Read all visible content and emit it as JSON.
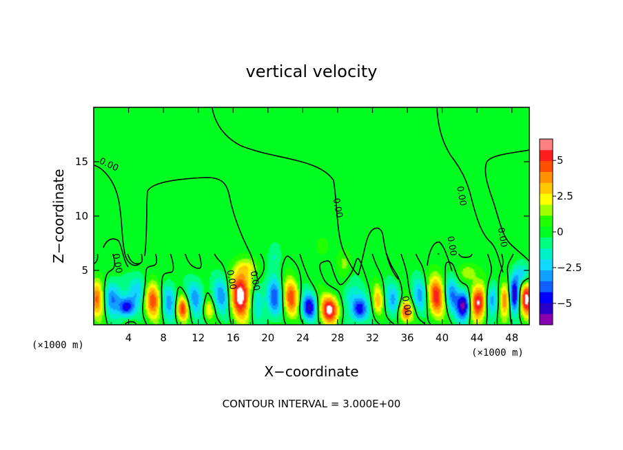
{
  "chart_data": {
    "type": "heatmap",
    "title": "vertical velocity",
    "xlabel": "X−coordinate",
    "ylabel": "Z−coordinate",
    "x_unit": "(×1000 m)",
    "x_unit_right": "(×1000 m)",
    "xlim": [
      0,
      50
    ],
    "ylim": [
      0,
      20
    ],
    "x_ticks": [
      4,
      8,
      12,
      16,
      20,
      24,
      28,
      32,
      36,
      40,
      44,
      48
    ],
    "x_tick_labels": [
      "4",
      "8",
      "12",
      "16",
      "20",
      "24",
      "28",
      "32",
      "36",
      "40",
      "44",
      "48"
    ],
    "y_ticks": [
      5,
      10,
      15
    ],
    "y_tick_labels": [
      "5",
      "10",
      "15"
    ],
    "colorbar": {
      "range": [
        -6.5,
        6.5
      ],
      "tick_values": [
        5,
        2.5,
        0,
        -2.5,
        -5
      ],
      "tick_labels": [
        "5",
        "2.5",
        "0",
        "−2.5",
        "−5"
      ],
      "colors": [
        "#8a00b0",
        "#2a00c8",
        "#0000ff",
        "#1060ff",
        "#10a0ff",
        "#10d8ff",
        "#00f0c8",
        "#00ff80",
        "#00ff20",
        "#20ff00",
        "#a0ff00",
        "#ffff00",
        "#ffc800",
        "#ff9000",
        "#ff5000",
        "#ff1e1e",
        "#ff8080"
      ]
    },
    "contour_interval_text": "CONTOUR INTERVAL = 3.000E+00",
    "contour_labels": [
      {
        "text": "0.00",
        "x": 1.6,
        "z": 14.5
      },
      {
        "text": "0.00",
        "x": 2.4,
        "z": 5.6
      },
      {
        "text": "0.00",
        "x": 15.5,
        "z": 4.1
      },
      {
        "text": "0.00",
        "x": 18.2,
        "z": 4.0
      },
      {
        "text": "0.00",
        "x": 27.7,
        "z": 10.7
      },
      {
        "text": "0.00",
        "x": 35.6,
        "z": 1.7
      },
      {
        "text": "0.00",
        "x": 40.8,
        "z": 7.2
      },
      {
        "text": "0.00",
        "x": 41.9,
        "z": 11.8
      },
      {
        "text": "0.00",
        "x": 46.6,
        "z": 8.0
      }
    ],
    "cells": [
      {
        "x": 0.5,
        "z": 2.5,
        "v": 4.5,
        "rx": 0.9,
        "rz": 1.7
      },
      {
        "x": 2.2,
        "z": 2.5,
        "v": -3.5,
        "rx": 1.2,
        "rz": 1.5
      },
      {
        "x": 3.8,
        "z": 1.6,
        "v": -5.0,
        "rx": 0.9,
        "rz": 0.9
      },
      {
        "x": 5.2,
        "z": 3.2,
        "v": -2.5,
        "rx": 1.0,
        "rz": 1.4
      },
      {
        "x": 6.8,
        "z": 2.3,
        "v": 4.5,
        "rx": 1.0,
        "rz": 1.7
      },
      {
        "x": 8.7,
        "z": 2.2,
        "v": -3.0,
        "rx": 0.9,
        "rz": 1.6
      },
      {
        "x": 10.2,
        "z": 1.5,
        "v": 5.0,
        "rx": 0.7,
        "rz": 1.1
      },
      {
        "x": 11.7,
        "z": 2.5,
        "v": -2.8,
        "rx": 1.0,
        "rz": 1.6
      },
      {
        "x": 13.2,
        "z": 1.4,
        "v": 2.5,
        "rx": 0.6,
        "rz": 0.9
      },
      {
        "x": 14.7,
        "z": 2.7,
        "v": -3.0,
        "rx": 1.0,
        "rz": 1.7
      },
      {
        "x": 16.9,
        "z": 2.8,
        "v": 6.5,
        "rx": 1.2,
        "rz": 2.2
      },
      {
        "x": 18.8,
        "z": 2.3,
        "v": -2.2,
        "rx": 0.8,
        "rz": 1.7
      },
      {
        "x": 20.7,
        "z": 2.4,
        "v": -4.0,
        "rx": 0.9,
        "rz": 1.8
      },
      {
        "x": 22.6,
        "z": 2.4,
        "v": 4.5,
        "rx": 0.9,
        "rz": 1.8
      },
      {
        "x": 24.7,
        "z": 1.6,
        "v": -5.0,
        "rx": 0.9,
        "rz": 1.2
      },
      {
        "x": 27.1,
        "z": 1.4,
        "v": 6.0,
        "rx": 1.1,
        "rz": 1.3
      },
      {
        "x": 29.5,
        "z": 2.7,
        "v": -2.0,
        "rx": 0.9,
        "rz": 1.4
      },
      {
        "x": 30.5,
        "z": 1.4,
        "v": -5.0,
        "rx": 0.9,
        "rz": 1.1
      },
      {
        "x": 32.6,
        "z": 2.2,
        "v": 3.0,
        "rx": 0.6,
        "rz": 1.4
      },
      {
        "x": 34.3,
        "z": 2.2,
        "v": -2.5,
        "rx": 0.9,
        "rz": 1.5
      },
      {
        "x": 35.8,
        "z": 1.2,
        "v": 5.0,
        "rx": 0.8,
        "rz": 1.0
      },
      {
        "x": 37.4,
        "z": 2.6,
        "v": -2.8,
        "rx": 0.9,
        "rz": 1.6
      },
      {
        "x": 39.3,
        "z": 2.6,
        "v": 5.0,
        "rx": 1.0,
        "rz": 1.9
      },
      {
        "x": 41.1,
        "z": 2.8,
        "v": -3.0,
        "rx": 0.8,
        "rz": 1.6
      },
      {
        "x": 42.5,
        "z": 1.8,
        "v": -6.5,
        "rx": 0.8,
        "rz": 1.3
      },
      {
        "x": 44.2,
        "z": 2.1,
        "v": 6.5,
        "rx": 1.0,
        "rz": 1.6
      },
      {
        "x": 45.7,
        "z": 2.3,
        "v": -4.0,
        "rx": 0.8,
        "rz": 1.4
      },
      {
        "x": 47.3,
        "z": 2.4,
        "v": 5.0,
        "rx": 0.7,
        "rz": 1.6
      },
      {
        "x": 48.3,
        "z": 2.8,
        "v": -6.5,
        "rx": 0.7,
        "rz": 1.6
      },
      {
        "x": 49.7,
        "z": 2.4,
        "v": 6.0,
        "rx": 0.9,
        "rz": 1.6
      },
      {
        "x": 49.2,
        "z": 4.6,
        "v": -2.5,
        "rx": 0.9,
        "rz": 1.0
      },
      {
        "x": 17.7,
        "z": 5.3,
        "v": 1.5,
        "rx": 1.3,
        "rz": 0.8
      },
      {
        "x": 20.8,
        "z": 6.3,
        "v": -1.2,
        "rx": 0.7,
        "rz": 1.3
      },
      {
        "x": 26.2,
        "z": 7.2,
        "v": 0.8,
        "rx": 0.8,
        "rz": 1.0
      },
      {
        "x": 28.8,
        "z": 5.7,
        "v": 1.3,
        "rx": 0.8,
        "rz": 1.2
      },
      {
        "x": 43.0,
        "z": 4.8,
        "v": 1.8,
        "rx": 1.0,
        "rz": 0.8
      }
    ]
  }
}
